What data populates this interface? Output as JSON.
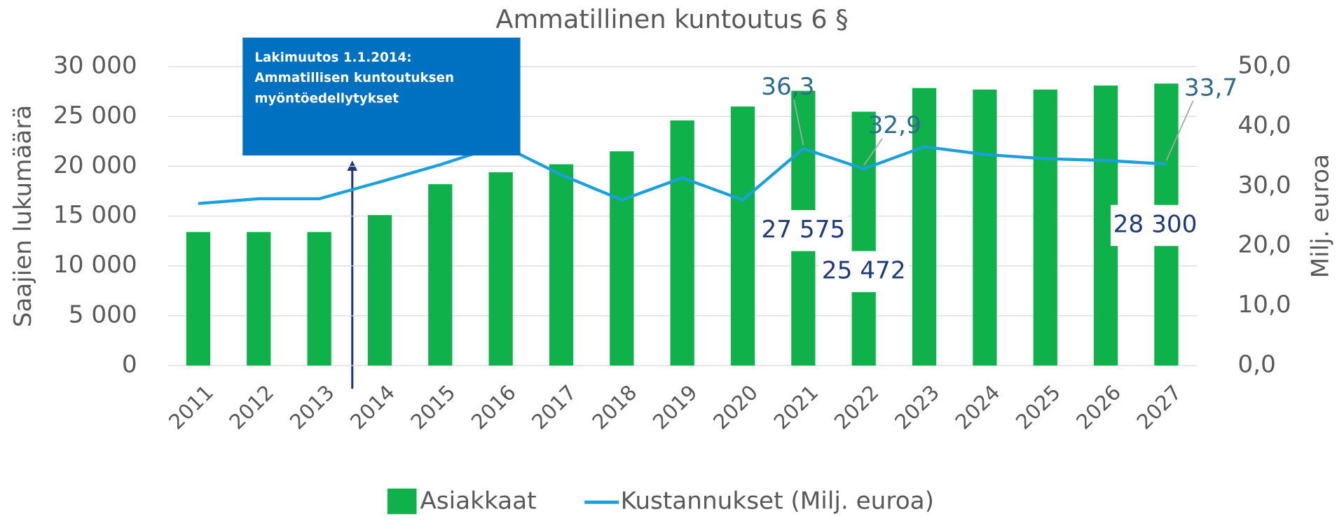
{
  "chart_data": {
    "type": "bar_line",
    "title": "Ammatillinen kuntoutus 6 §",
    "ylabel": "Saajien lukumäärä",
    "y2label": "Milj. euroa",
    "categories": [
      "2011",
      "2012",
      "2013",
      "2014",
      "2015",
      "2016",
      "2017",
      "2018",
      "2019",
      "2020",
      "2021",
      "2022",
      "2023",
      "2024",
      "2025",
      "2026",
      "2027"
    ],
    "series": [
      {
        "name": "Asiakkaat",
        "color": "#0fb14a",
        "type": "bar",
        "values": [
          13400,
          13400,
          13400,
          15100,
          18200,
          19400,
          20200,
          21500,
          24600,
          26000,
          27575,
          25472,
          27850,
          27700,
          27700,
          28100,
          28300
        ],
        "value_labels": [
          null,
          null,
          null,
          null,
          null,
          null,
          null,
          null,
          null,
          null,
          "27 575",
          "25 472",
          null,
          null,
          null,
          null,
          "28 300"
        ]
      },
      {
        "name": "Kustannukset (Milj. euroa)",
        "color": "#1aa0dc",
        "type": "line",
        "axis": "y2",
        "values": [
          27.1,
          27.9,
          27.9,
          30.7,
          33.6,
          36.9,
          31.9,
          27.7,
          31.4,
          27.7,
          36.3,
          32.9,
          36.6,
          35.3,
          34.6,
          34.3,
          33.7
        ],
        "value_labels": [
          null,
          null,
          null,
          null,
          null,
          null,
          null,
          null,
          null,
          null,
          "36,3",
          "32,9",
          null,
          null,
          null,
          null,
          "33,7"
        ]
      }
    ],
    "ylim": [
      0,
      30000
    ],
    "yticks": [
      0,
      {
        "value": 5000,
        "label": "5 000"
      },
      {
        "value": 10000,
        "label": "10 000"
      },
      {
        "value": 15000,
        "label": "15 000"
      },
      {
        "value": 20000,
        "label": "20 000"
      },
      {
        "value": 25000,
        "label": "25 000"
      },
      {
        "value": 30000,
        "label": "30 000"
      }
    ],
    "y2lim": [
      0,
      50
    ],
    "y2ticks": [
      {
        "value": 0,
        "label": "0,0"
      },
      {
        "value": 10,
        "label": "10,0"
      },
      {
        "value": 20,
        "label": "20,0"
      },
      {
        "value": 30,
        "label": "30,0"
      },
      {
        "value": 40,
        "label": "40,0"
      },
      {
        "value": 50,
        "label": "50,0"
      }
    ],
    "grid": true,
    "annotation": {
      "lines": [
        "Lakimuutos 1.1.2014:",
        "Ammatillisen kuntoutuksen",
        "myöntöedellytykset"
      ],
      "category": "2014"
    }
  }
}
